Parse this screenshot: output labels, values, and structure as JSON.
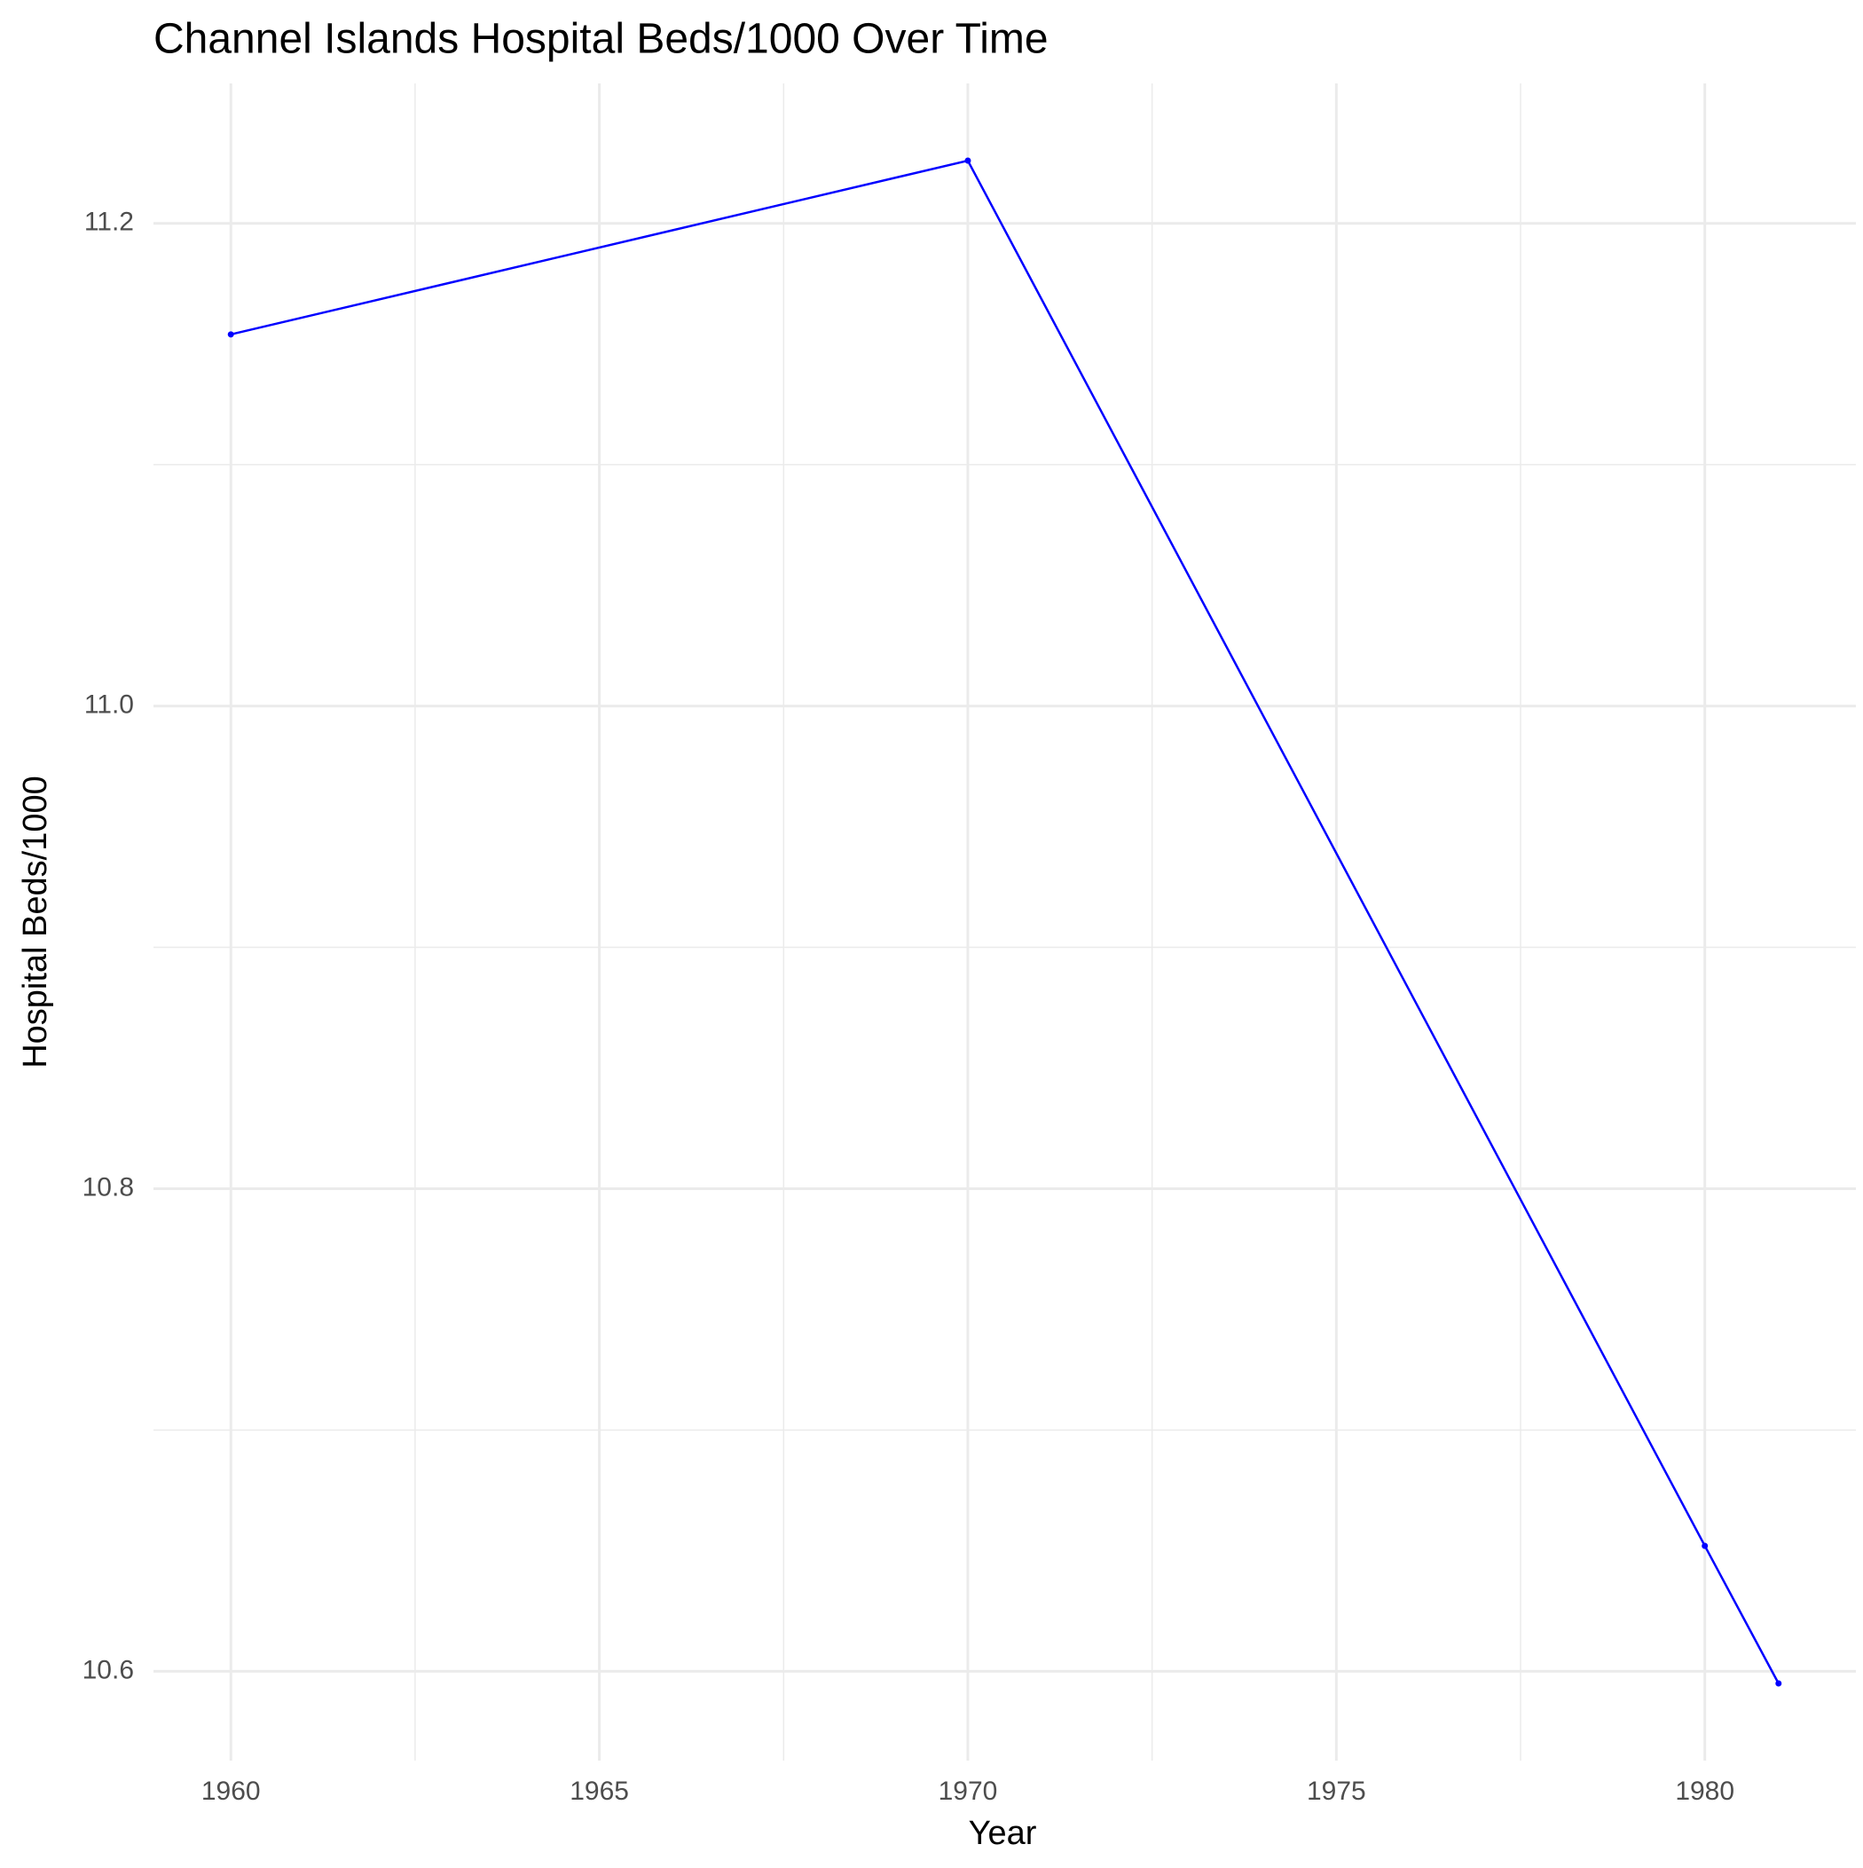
{
  "chart_data": {
    "type": "line",
    "title": "Channel Islands Hospital Beds/1000 Over Time",
    "x_label": "Year",
    "y_label": "Hospital Beds/1000",
    "x": [
      1960,
      1970,
      1980,
      1981
    ],
    "series": [
      {
        "name": "Hospital Beds/1000",
        "color": "#0000ff",
        "values": [
          11.154,
          11.226,
          10.652,
          10.595
        ]
      }
    ],
    "xlim": [
      1958.95,
      1982.05
    ],
    "ylim": [
      10.563,
      11.258
    ],
    "xticks": [
      1960,
      1965,
      1970,
      1975,
      1980
    ],
    "yticks": [
      {
        "value": 10.6,
        "label": "10.6"
      },
      {
        "value": 10.8,
        "label": "10.8"
      },
      {
        "value": 11.0,
        "label": "11.0"
      },
      {
        "value": 11.2,
        "label": "11.2"
      }
    ],
    "x_minor_grid": [
      1962.5,
      1967.5,
      1972.5,
      1977.5
    ],
    "y_minor_grid": [
      10.7,
      10.9,
      11.1
    ],
    "grid": true
  }
}
